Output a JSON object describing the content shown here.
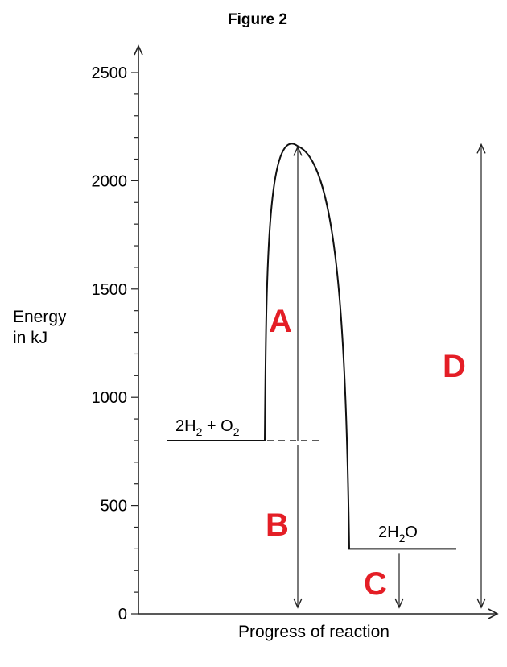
{
  "chart_data": {
    "type": "line",
    "title": "Figure 2",
    "xlabel": "Progress of reaction",
    "ylabel_lines": [
      "Energy",
      "in kJ"
    ],
    "ylim": [
      0,
      2500
    ],
    "yticks": [
      0,
      500,
      1000,
      1500,
      2000,
      2500
    ],
    "levels": {
      "reactants": {
        "energy": 800,
        "label_parts": [
          "2H",
          "2",
          " + O",
          "2"
        ]
      },
      "peak": {
        "energy": 2160
      },
      "products": {
        "energy": 300,
        "label_parts": [
          "2H",
          "2",
          "O"
        ]
      }
    },
    "arrows": [
      {
        "label": "A",
        "from": 800,
        "to": 2160,
        "color": "#e41e26"
      },
      {
        "label": "B",
        "from": 800,
        "to": 0,
        "color": "#e41e26"
      },
      {
        "label": "C",
        "from": 300,
        "to": 0,
        "color": "#e41e26"
      },
      {
        "label": "D",
        "from": 0,
        "to": 2160,
        "color": "#e41e26"
      }
    ],
    "grid": false
  }
}
